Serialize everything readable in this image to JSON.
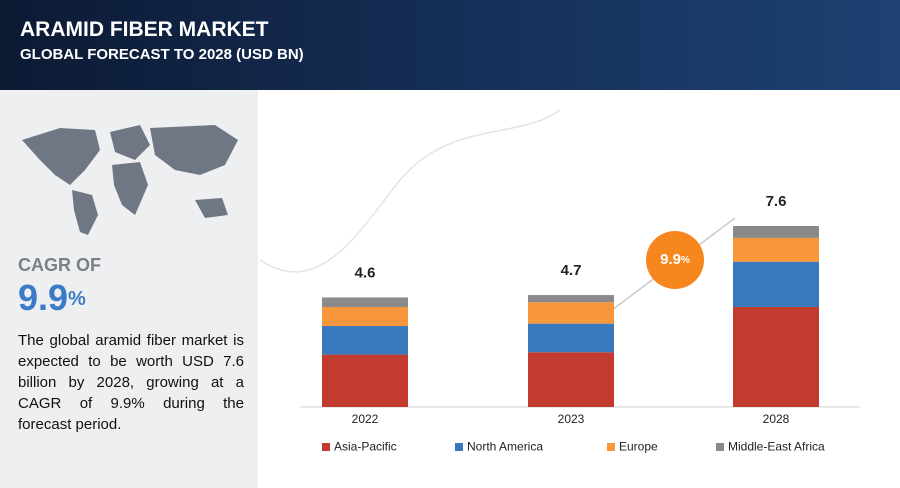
{
  "header": {
    "title": "ARAMID FIBER MARKET",
    "subtitle": "GLOBAL FORECAST TO 2028 (USD BN)"
  },
  "summary": {
    "cagr_label": "CAGR OF",
    "cagr_value": 9.9,
    "cagr_unit": "%",
    "text": "The global aramid fiber market is expected to be worth USD 7.6 billion by 2028, growing at a CAGR of 9.9% during the forecast period."
  },
  "chart_data": {
    "type": "stacked_bar",
    "categories": [
      "2022",
      "2023",
      "2028"
    ],
    "totals": [
      4.6,
      4.7,
      7.6
    ],
    "series": [
      {
        "name": "Asia-Pacific",
        "color": "#c23b2e",
        "values": [
          2.2,
          2.3,
          4.2
        ]
      },
      {
        "name": "North America",
        "color": "#3a78bd",
        "values": [
          1.2,
          1.2,
          1.9
        ]
      },
      {
        "name": "Europe",
        "color": "#f7963b",
        "values": [
          0.8,
          0.9,
          1.0
        ]
      },
      {
        "name": "Middle-East Africa",
        "color": "#8a8a8a",
        "values": [
          0.4,
          0.3,
          0.5
        ]
      }
    ],
    "legend": "bottom"
  }
}
